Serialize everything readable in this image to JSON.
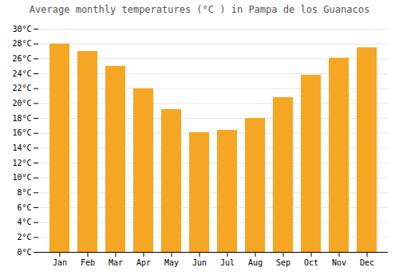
{
  "chart_data": {
    "type": "bar",
    "title": "Average monthly temperatures (°C ) in Pampa de los Guanacos",
    "categories": [
      "Jan",
      "Feb",
      "Mar",
      "Apr",
      "May",
      "Jun",
      "Jul",
      "Aug",
      "Sep",
      "Oct",
      "Nov",
      "Dec"
    ],
    "values": [
      28.0,
      27.0,
      25.0,
      22.0,
      19.2,
      16.1,
      16.4,
      18.0,
      20.8,
      23.8,
      26.1,
      27.5
    ],
    "color": "#F5A623",
    "ylim": [
      0,
      30
    ],
    "yticks": [
      {
        "value": 0,
        "label": "0°C"
      },
      {
        "value": 2,
        "label": "2°C"
      },
      {
        "value": 4,
        "label": "4°C"
      },
      {
        "value": 6,
        "label": "6°C"
      },
      {
        "value": 8,
        "label": "8°C"
      },
      {
        "value": 10,
        "label": "10°C"
      },
      {
        "value": 12,
        "label": "12°C"
      },
      {
        "value": 14,
        "label": "14°C"
      },
      {
        "value": 16,
        "label": "16°C"
      },
      {
        "value": 18,
        "label": "18°C"
      },
      {
        "value": 20,
        "label": "20°C"
      },
      {
        "value": 22,
        "label": "22°C"
      },
      {
        "value": 24,
        "label": "24°C"
      },
      {
        "value": 26,
        "label": "26°C"
      },
      {
        "value": 28,
        "label": "28°C"
      },
      {
        "value": 30,
        "label": "30°C"
      }
    ],
    "grid": true
  }
}
